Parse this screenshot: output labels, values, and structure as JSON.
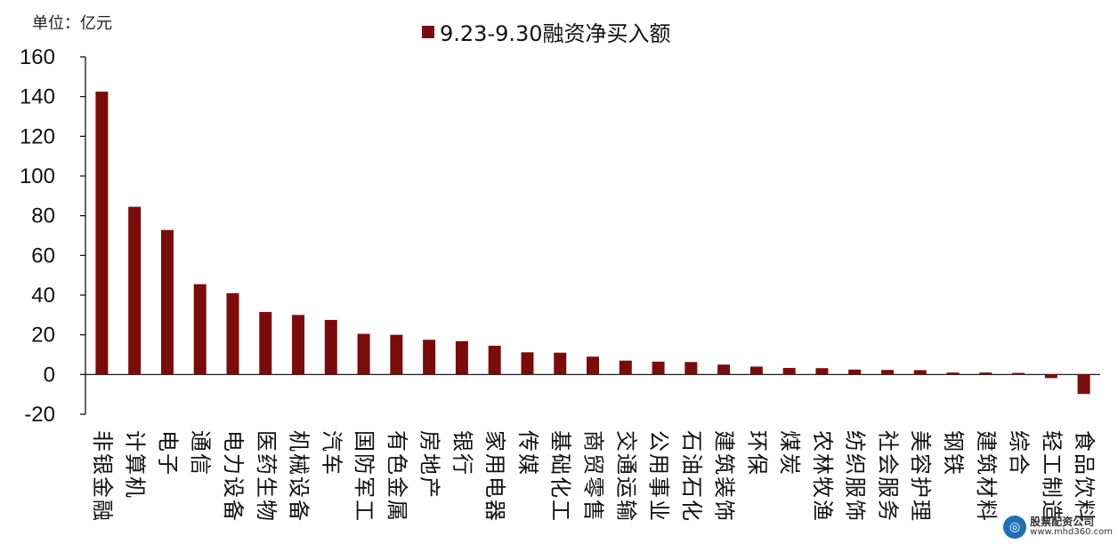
{
  "unit_label": "单位：亿元",
  "legend": {
    "label": "9.23-9.30融资净买入额",
    "color": "#7b0c0c"
  },
  "watermark": {
    "name": "股票配资公司",
    "url": "www.mhd360.com",
    "icon": "globe-icon"
  },
  "chart_data": {
    "type": "bar",
    "title": "",
    "xlabel": "",
    "ylabel": "",
    "ylim": [
      -20,
      160
    ],
    "yticks": [
      -20,
      0,
      20,
      40,
      60,
      80,
      100,
      120,
      140,
      160
    ],
    "grid": false,
    "legend_position": "top-center",
    "bar_color": "#7b0c0c",
    "categories": [
      "非银金融",
      "计算机",
      "电子",
      "通信",
      "电力设备",
      "医药生物",
      "机械设备",
      "汽车",
      "国防军工",
      "有色金属",
      "房地产",
      "银行",
      "家用电器",
      "传媒",
      "基础化工",
      "商贸零售",
      "交通运输",
      "公用事业",
      "石油石化",
      "建筑装饰",
      "环保",
      "煤炭",
      "农林牧渔",
      "纺织服饰",
      "社会服务",
      "美容护理",
      "钢铁",
      "建筑材料",
      "综合",
      "轻工制造",
      "食品饮料"
    ],
    "series": [
      {
        "name": "9.23-9.30融资净买入额",
        "values": [
          142.5,
          84.5,
          72.8,
          45.5,
          41.0,
          31.5,
          30.0,
          27.5,
          20.5,
          20.0,
          17.5,
          16.8,
          14.5,
          11.2,
          11.0,
          9.0,
          7.0,
          6.5,
          6.3,
          5.0,
          4.0,
          3.3,
          3.2,
          2.5,
          2.3,
          2.2,
          1.0,
          1.0,
          0.8,
          -1.8,
          -9.8
        ]
      }
    ]
  }
}
